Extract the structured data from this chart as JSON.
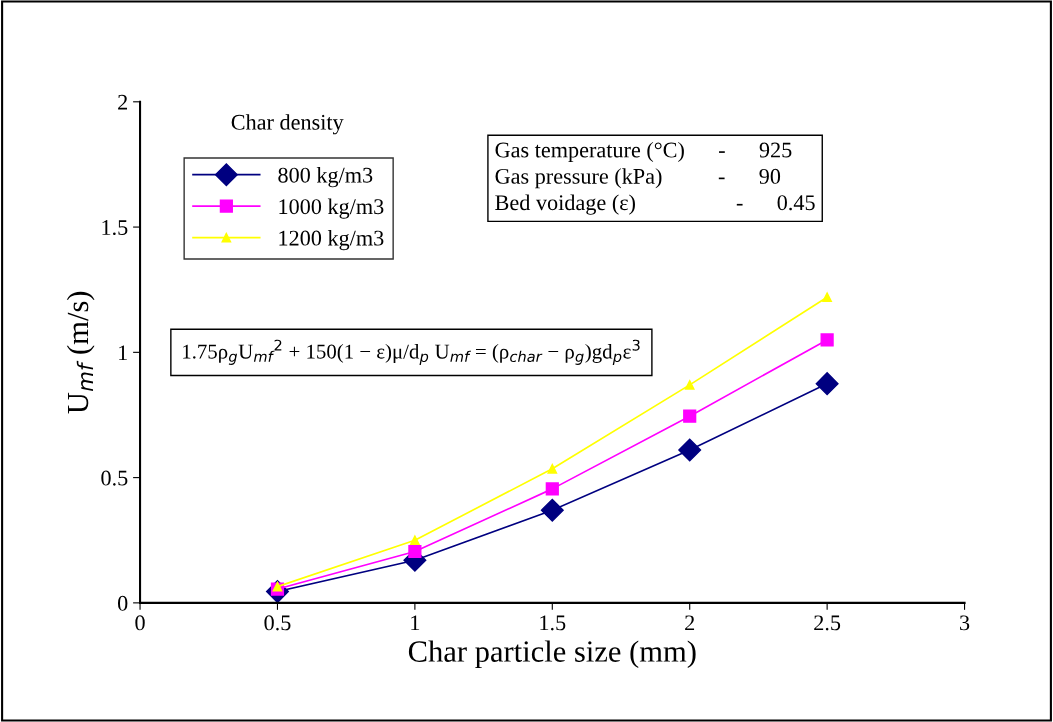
{
  "chart_data": {
    "type": "line",
    "xlabel": "Char particle size (mm)",
    "ylabel": "U$_{mf}$ (m/s)",
    "x": [
      0.5,
      1,
      1.5,
      2,
      2.5
    ],
    "series": [
      {
        "name": "800 kg/m3",
        "color": "#000080",
        "marker": "diamond",
        "values": [
          0.045,
          0.17,
          0.37,
          0.61,
          0.875
        ]
      },
      {
        "name": "1000 kg/m3",
        "color": "#ff00ff",
        "marker": "square",
        "values": [
          0.055,
          0.205,
          0.455,
          0.745,
          1.05
        ]
      },
      {
        "name": "1200 kg/m3",
        "color": "#ffff00",
        "marker": "triangle",
        "values": [
          0.065,
          0.25,
          0.535,
          0.87,
          1.22
        ]
      }
    ],
    "legend": "top left",
    "legend_title": "Char density",
    "xlim": [
      0,
      3
    ],
    "ylim": [
      0,
      2
    ],
    "xticks": [
      0,
      0.5,
      1,
      1.5,
      2,
      2.5,
      3
    ],
    "yticks": [
      0,
      0.5,
      1,
      1.5,
      2
    ],
    "grid": false,
    "annotations": [
      "Gas temperature (°C)      -      925\nGas pressure (kPa)          -      90\nBed voidage (ε)                  -      0.45",
      "1.75ρ$_{g}$U$_{mf}$$^{2}$ + 150(1 − ε)μ/d$_{p}$ U$_{mf}$ = (ρ$_{char}$ − ρ$_{g}$)gd$_{p}$ε$^{3}$"
    ]
  }
}
